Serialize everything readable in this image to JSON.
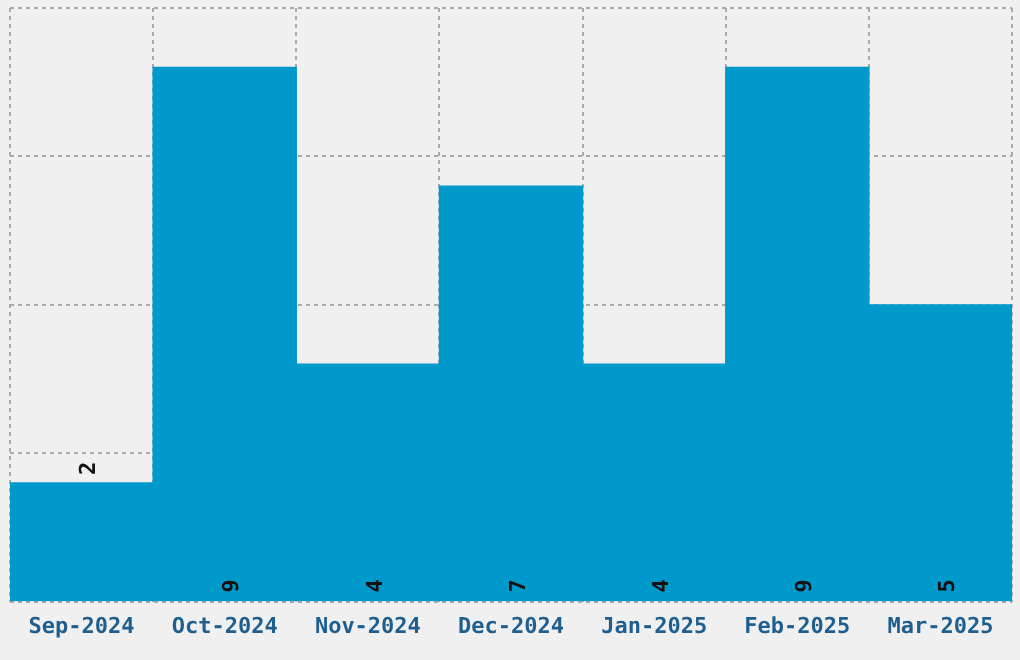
{
  "chart_data": {
    "type": "bar",
    "relative": false,
    "categories": [
      "Sep-2024",
      "Oct-2024",
      "Nov-2024",
      "Dec-2024",
      "Jan-2025",
      "Feb-2025",
      "Mar-2025"
    ],
    "values": [
      2,
      9,
      4,
      7,
      4,
      9,
      5
    ],
    "color": "#0099cc",
    "ylim": [
      0,
      10
    ],
    "yticks": [
      {
        "value": 0,
        "label": null
      },
      {
        "value": 2.5,
        "label": null
      },
      {
        "value": 5,
        "label": null
      },
      {
        "value": 7.5,
        "label": null
      },
      {
        "value": 10,
        "label": null
      }
    ],
    "tick_labels": "x",
    "grid": true,
    "data_labels": true
  }
}
